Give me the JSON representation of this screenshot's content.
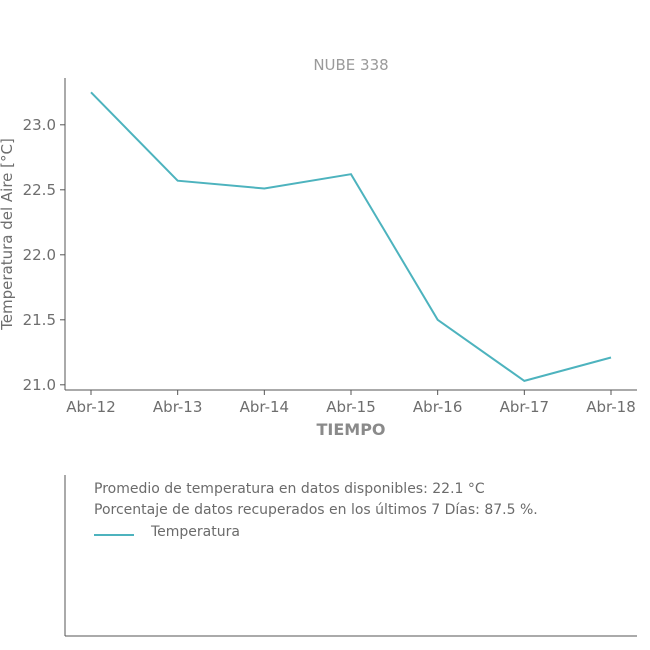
{
  "chart_data": {
    "type": "line",
    "title": "NUBE 338",
    "xlabel": "TIEMPO",
    "ylabel": "Temperatura del Aire [°C]",
    "categories": [
      "Abr-12",
      "Abr-13",
      "Abr-14",
      "Abr-15",
      "Abr-16",
      "Abr-17",
      "Abr-18"
    ],
    "series": [
      {
        "name": "Temperatura",
        "values": [
          23.25,
          22.57,
          22.51,
          22.62,
          21.5,
          21.03,
          21.21
        ]
      }
    ],
    "yticks": [
      "21.0",
      "21.5",
      "22.0",
      "22.5",
      "23.0"
    ],
    "ylim": [
      20.96,
      23.36
    ],
    "grid": false,
    "legend": "bottom-panel"
  },
  "colors": {
    "series": "#4db3be",
    "axis": "#555555"
  },
  "info": {
    "average": "Promedio de temperatura en datos disponibles: 22.1 °C",
    "recovered": "Porcentaje de datos recuperados en los últimos 7 Días: 87.5 %."
  },
  "legend": {
    "label": "Temperatura"
  }
}
